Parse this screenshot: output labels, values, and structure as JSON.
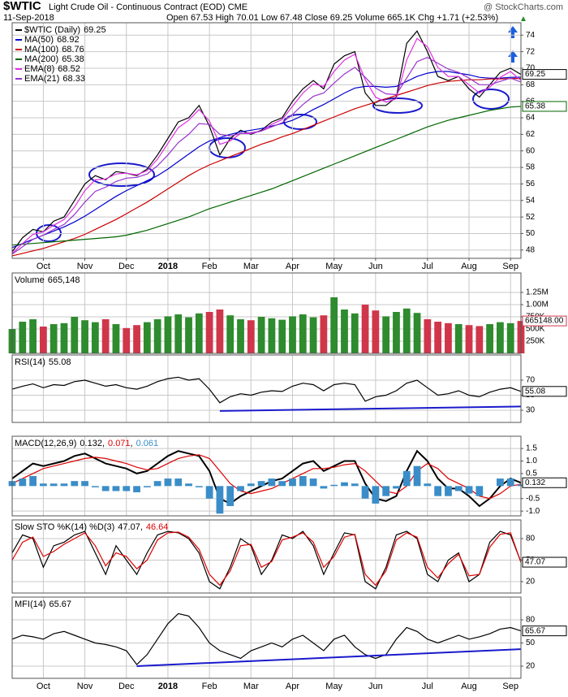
{
  "header": {
    "symbol": "$WTIC",
    "description": "Light Crude Oil - Continuous Contract (EOD) CME",
    "credit": "@ StockCharts.com",
    "date": "11-Sep-2018",
    "quote": "Open 67.53 High 70.01 Low 67.48 Close 69.25 Volume 665.1K Chg +1.71 (+2.53%)"
  },
  "chart_data": [
    {
      "type": "line",
      "categories": [
        null,
        null,
        null,
        "Oct",
        null,
        null,
        null,
        "Nov",
        null,
        null,
        null,
        "Dec",
        null,
        null,
        null,
        "2018",
        null,
        null,
        null,
        "Feb",
        null,
        null,
        null,
        "Mar",
        null,
        null,
        null,
        "Apr",
        null,
        null,
        null,
        "May",
        null,
        null,
        null,
        "Jun",
        null,
        null,
        null,
        null,
        "Jul",
        null,
        null,
        null,
        "Aug",
        null,
        null,
        null,
        "Sep",
        null
      ],
      "ylim": [
        47,
        75.5
      ],
      "yticks": [
        48,
        50,
        52,
        54,
        56,
        58,
        60,
        62,
        64,
        66,
        68,
        70,
        72,
        74
      ],
      "grid": true,
      "series": [
        {
          "name": "$WTIC (Daily)",
          "color": "#000000",
          "badge": true,
          "values": [
            47.8,
            49.5,
            50.5,
            50.2,
            51.5,
            52.0,
            54.0,
            56.0,
            57.0,
            56.5,
            57.5,
            57.3,
            57.0,
            57.8,
            59.5,
            61.5,
            63.5,
            64.0,
            65.5,
            63.0,
            59.5,
            61.5,
            62.5,
            62.0,
            62.5,
            63.5,
            64.0,
            66.0,
            67.5,
            68.5,
            67.5,
            70.5,
            71.5,
            72.0,
            67.0,
            65.5,
            65.5,
            66.5,
            73.0,
            74.5,
            72.0,
            69.0,
            68.5,
            69.0,
            67.5,
            66.5,
            68.0,
            69.5,
            70.0,
            69.25
          ]
        },
        {
          "name": "MA(50)",
          "color": "#0000cc",
          "values": [
            48.3,
            48.8,
            49.3,
            49.8,
            50.3,
            50.8,
            51.4,
            52.1,
            52.9,
            53.7,
            54.5,
            55.2,
            55.8,
            56.4,
            57.0,
            57.8,
            58.7,
            59.6,
            60.5,
            61.2,
            61.6,
            62.0,
            62.3,
            62.5,
            62.7,
            63.0,
            63.3,
            63.7,
            64.3,
            65.0,
            65.6,
            66.3,
            67.0,
            67.6,
            67.8,
            67.8,
            67.7,
            67.8,
            68.4,
            69.0,
            69.4,
            69.6,
            69.6,
            69.4,
            69.2,
            68.9,
            68.8,
            68.8,
            68.9,
            68.92
          ]
        },
        {
          "name": "MA(100)",
          "color": "#cc0000",
          "values": [
            47.3,
            47.6,
            47.9,
            48.2,
            48.6,
            49.0,
            49.4,
            49.9,
            50.5,
            51.1,
            51.7,
            52.4,
            53.1,
            53.8,
            54.6,
            55.4,
            56.2,
            57.0,
            57.7,
            58.3,
            58.8,
            59.3,
            59.8,
            60.3,
            60.8,
            61.2,
            61.7,
            62.1,
            62.6,
            63.1,
            63.6,
            64.1,
            64.6,
            65.1,
            65.5,
            65.9,
            66.3,
            66.7,
            67.1,
            67.5,
            67.9,
            68.2,
            68.4,
            68.5,
            68.6,
            68.6,
            68.7,
            68.7,
            68.75,
            68.76
          ]
        },
        {
          "name": "MA(200)",
          "color": "#006600",
          "badge": true,
          "values": [
            48.6,
            48.7,
            48.8,
            48.9,
            49.0,
            49.1,
            49.2,
            49.3,
            49.4,
            49.5,
            49.6,
            49.8,
            50.1,
            50.4,
            50.8,
            51.2,
            51.6,
            52.0,
            52.5,
            53.0,
            53.4,
            53.8,
            54.2,
            54.6,
            55.0,
            55.4,
            55.9,
            56.4,
            56.9,
            57.4,
            57.9,
            58.4,
            58.9,
            59.4,
            59.9,
            60.4,
            60.9,
            61.4,
            61.9,
            62.4,
            62.9,
            63.3,
            63.7,
            64.0,
            64.3,
            64.6,
            64.9,
            65.1,
            65.3,
            65.38
          ]
        },
        {
          "name": "EMA(8)",
          "color": "#e030e0",
          "values": [
            47.6,
            48.8,
            49.9,
            50.2,
            51.0,
            51.7,
            53.2,
            55.2,
            56.5,
            56.6,
            57.2,
            57.3,
            57.1,
            57.6,
            59.0,
            60.9,
            62.8,
            63.7,
            65.0,
            63.6,
            60.8,
            61.2,
            62.1,
            62.1,
            62.4,
            63.2,
            63.8,
            65.4,
            67.0,
            68.1,
            67.8,
            69.6,
            71.0,
            71.7,
            68.6,
            66.5,
            65.9,
            66.3,
            71.0,
            73.6,
            72.6,
            70.1,
            69.0,
            69.0,
            68.0,
            67.0,
            67.7,
            68.9,
            69.6,
            68.52
          ]
        },
        {
          "name": "EMA(21)",
          "color": "#9933cc",
          "values": [
            47.5,
            48.4,
            49.3,
            49.8,
            50.5,
            51.1,
            52.3,
            53.8,
            55.1,
            55.6,
            56.3,
            56.7,
            56.8,
            57.2,
            58.2,
            59.5,
            61.0,
            62.0,
            63.3,
            63.2,
            62.0,
            61.8,
            62.1,
            62.2,
            62.4,
            62.9,
            63.4,
            64.4,
            65.6,
            66.6,
            67.0,
            68.2,
            69.3,
            70.1,
            68.9,
            67.6,
            66.9,
            66.8,
            68.8,
            70.8,
            71.3,
            70.6,
            69.9,
            69.5,
            68.8,
            68.0,
            68.0,
            68.4,
            68.8,
            68.33
          ]
        }
      ]
    },
    {
      "type": "bar",
      "title": "Volume",
      "last_label": "665,148",
      "badge_label": "665148.00",
      "up_color": "#2e8b2e",
      "down_color": "#d0364a",
      "ylim": [
        0,
        1650000
      ],
      "yticks": [
        {
          "value": 250000,
          "label": "250K"
        },
        {
          "value": 500000,
          "label": "500K"
        },
        {
          "value": 750000,
          "label": "750K"
        },
        {
          "value": 1000000,
          "label": "1.00M"
        },
        {
          "value": 1250000,
          "label": "1.25M"
        }
      ],
      "grid": true,
      "values": [
        500000,
        650000,
        700000,
        550000,
        600000,
        620000,
        750000,
        680000,
        640000,
        700000,
        600000,
        520000,
        580000,
        640000,
        700000,
        760000,
        800000,
        740000,
        820000,
        850000,
        900000,
        780000,
        700000,
        680000,
        750000,
        720000,
        690000,
        760000,
        800000,
        740000,
        780000,
        1150000,
        900000,
        820000,
        1000000,
        880000,
        760000,
        850000,
        920000,
        830000,
        700000,
        650000,
        620000,
        600000,
        580000,
        560000,
        600000,
        640000,
        620000,
        665148
      ]
    },
    {
      "type": "line",
      "title": "RSI(14)",
      "ylim": [
        13.8,
        103.5
      ],
      "yticks": [
        30,
        50,
        70
      ],
      "grid": true,
      "series": [
        {
          "color": "#000000",
          "badge": true,
          "values": [
            58,
            62,
            65,
            60,
            64,
            63,
            68,
            70,
            66,
            62,
            64,
            60,
            58,
            62,
            68,
            72,
            74,
            70,
            72,
            58,
            40,
            48,
            52,
            50,
            54,
            56,
            55,
            62,
            66,
            64,
            56,
            64,
            66,
            64,
            42,
            48,
            50,
            56,
            66,
            70,
            60,
            50,
            52,
            56,
            50,
            48,
            54,
            58,
            60,
            55.08
          ]
        }
      ],
      "trendline": {
        "x": [
          20,
          49
        ],
        "values": [
          29,
          35
        ],
        "color": "#1a1acc"
      }
    },
    {
      "type": "line",
      "title": "MACD(12,26,9)",
      "value_separator": ",",
      "ylim": [
        -1.19,
        1.99
      ],
      "yticks": [
        1.5,
        {
          "value": 1,
          "label": "1.0"
        },
        0.5,
        -0.5,
        {
          "value": -1,
          "label": "-1.0"
        }
      ],
      "grid": true,
      "series": [
        {
          "color": "#000000",
          "width": 2,
          "badge": true,
          "values": [
            0.3,
            0.6,
            0.9,
            0.8,
            0.9,
            1.0,
            1.2,
            1.3,
            1.1,
            0.9,
            0.8,
            0.7,
            0.5,
            0.6,
            0.9,
            1.2,
            1.4,
            1.3,
            1.2,
            0.6,
            -0.5,
            -0.7,
            -0.4,
            -0.2,
            0.0,
            0.2,
            0.3,
            0.6,
            0.9,
            1.0,
            0.6,
            0.8,
            1.0,
            1.0,
            0.1,
            -0.5,
            -0.6,
            -0.4,
            0.6,
            1.4,
            1.0,
            0.3,
            -0.1,
            -0.1,
            -0.4,
            -0.8,
            -0.5,
            0.0,
            0.3,
            0.132
          ]
        },
        {
          "color": "#dd0000",
          "values": [
            0.1,
            0.3,
            0.5,
            0.7,
            0.8,
            0.9,
            1.0,
            1.1,
            1.15,
            1.1,
            1.0,
            0.9,
            0.75,
            0.65,
            0.7,
            0.9,
            1.1,
            1.2,
            1.25,
            1.1,
            0.6,
            0.1,
            -0.2,
            -0.3,
            -0.2,
            -0.1,
            0.1,
            0.3,
            0.5,
            0.7,
            0.7,
            0.75,
            0.85,
            0.9,
            0.6,
            0.2,
            -0.2,
            -0.3,
            0.0,
            0.6,
            0.9,
            0.7,
            0.3,
            0.1,
            -0.1,
            -0.4,
            -0.5,
            -0.3,
            0.0,
            0.071
          ]
        },
        {
          "color": "#3a8dc8",
          "kind": "bar",
          "values": [
            0.2,
            0.3,
            0.4,
            0.1,
            0.1,
            0.1,
            0.2,
            0.2,
            -0.05,
            -0.2,
            -0.2,
            -0.2,
            -0.25,
            -0.05,
            0.2,
            0.3,
            0.3,
            0.1,
            -0.05,
            -0.5,
            -1.1,
            -0.8,
            -0.2,
            0.1,
            0.2,
            0.3,
            0.2,
            0.3,
            0.4,
            0.3,
            -0.1,
            0.05,
            0.15,
            0.1,
            -0.5,
            -0.7,
            -0.4,
            -0.1,
            0.6,
            0.8,
            0.1,
            -0.4,
            -0.4,
            -0.2,
            -0.3,
            -0.4,
            0.0,
            0.3,
            0.3,
            0.061
          ]
        }
      ]
    },
    {
      "type": "line",
      "title": "Slow STO %K(14) %D(3)",
      "value_separator": ",",
      "ylim": [
        4.1,
        106
      ],
      "yticks": [
        20,
        50,
        80
      ],
      "grid": true,
      "series": [
        {
          "color": "#000000",
          "badge": true,
          "values": [
            60,
            85,
            80,
            40,
            70,
            75,
            85,
            90,
            60,
            30,
            70,
            50,
            30,
            60,
            85,
            90,
            88,
            80,
            60,
            20,
            10,
            40,
            80,
            70,
            30,
            50,
            85,
            80,
            90,
            70,
            30,
            60,
            88,
            85,
            20,
            10,
            40,
            85,
            90,
            80,
            30,
            20,
            50,
            60,
            20,
            30,
            75,
            90,
            85,
            47.07
          ]
        },
        {
          "color": "#dd0000",
          "values": [
            50,
            75,
            82,
            55,
            62,
            72,
            80,
            88,
            70,
            42,
            60,
            55,
            38,
            50,
            78,
            88,
            89,
            82,
            65,
            30,
            15,
            35,
            70,
            72,
            40,
            48,
            78,
            82,
            88,
            75,
            40,
            55,
            82,
            86,
            30,
            15,
            35,
            78,
            88,
            82,
            40,
            25,
            45,
            58,
            28,
            30,
            68,
            86,
            88,
            46.64
          ]
        }
      ]
    },
    {
      "type": "line",
      "title": "MFI(14)",
      "categories": [
        null,
        null,
        null,
        "Oct",
        null,
        null,
        null,
        "Nov",
        null,
        null,
        null,
        "Dec",
        null,
        null,
        null,
        "2018",
        null,
        null,
        null,
        "Feb",
        null,
        null,
        null,
        "Mar",
        null,
        null,
        null,
        "Apr",
        null,
        null,
        null,
        "May",
        null,
        null,
        null,
        "Jun",
        null,
        null,
        null,
        null,
        "Jul",
        null,
        null,
        null,
        "Aug",
        null,
        null,
        null,
        "Sep",
        null
      ],
      "ylim": [
        4.2,
        109.5
      ],
      "yticks": [
        20,
        50,
        80
      ],
      "grid": true,
      "series": [
        {
          "color": "#000000",
          "badge": true,
          "values": [
            55,
            60,
            58,
            55,
            62,
            65,
            60,
            55,
            50,
            48,
            45,
            40,
            22,
            35,
            55,
            75,
            88,
            85,
            70,
            50,
            40,
            35,
            30,
            40,
            45,
            50,
            45,
            55,
            60,
            50,
            40,
            55,
            60,
            45,
            35,
            30,
            35,
            55,
            70,
            65,
            55,
            50,
            55,
            60,
            55,
            58,
            62,
            68,
            70,
            65.67
          ]
        }
      ],
      "trendline": {
        "x": [
          12,
          49
        ],
        "values": [
          20,
          42
        ],
        "color": "#1a1acc"
      }
    }
  ]
}
